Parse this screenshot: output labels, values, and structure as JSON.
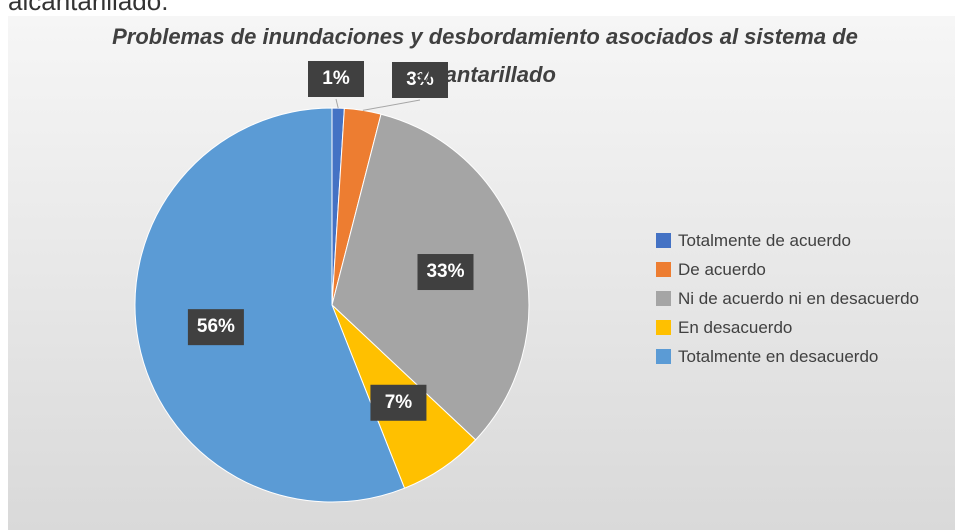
{
  "caption": "alcantarillado.",
  "chart_data": {
    "type": "pie",
    "title": "Problemas de inundaciones y desbordamiento asociados al sistema de alcantarillado",
    "categories": [
      "Totalmente de acuerdo",
      "De acuerdo",
      "Ni de acuerdo ni en desacuerdo",
      "En desacuerdo",
      "Totalmente en desacuerdo"
    ],
    "values": [
      1,
      3,
      33,
      7,
      56
    ],
    "value_labels": [
      "1%",
      "3%",
      "33%",
      "7%",
      "56%"
    ],
    "colors": [
      "#4472c4",
      "#ed7d31",
      "#a5a5a5",
      "#ffc000",
      "#5b9bd5"
    ],
    "legend": "right"
  }
}
